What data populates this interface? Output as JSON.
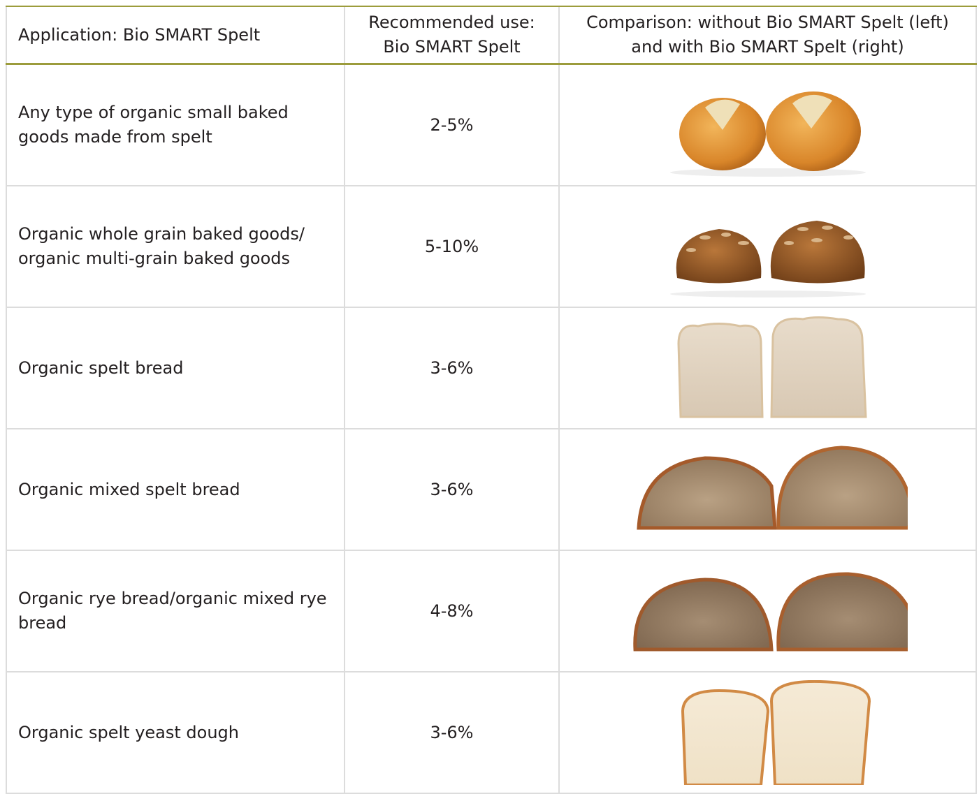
{
  "table": {
    "header": [
      [
        "Application: Bio SMART Spelt"
      ],
      [
        "Recommended use:",
        "Bio SMART Spelt"
      ],
      [
        "Comparison: without Bio SMART Spelt (left)",
        "and with Bio SMART Spelt (right)"
      ]
    ],
    "rows": [
      {
        "application": [
          "Any type of organic small baked",
          "goods made from spelt"
        ],
        "use": "2-5%"
      },
      {
        "application": [
          "Organic whole grain baked goods/",
          "organic multi-grain baked goods"
        ],
        "use": "5-10%"
      },
      {
        "application": [
          "Organic spelt bread"
        ],
        "use": "3-6%"
      },
      {
        "application": [
          "Organic mixed spelt bread"
        ],
        "use": "3-6%"
      },
      {
        "application": [
          "Organic rye bread/organic mixed rye",
          "bread"
        ],
        "use": "4-8%"
      },
      {
        "application": [
          "Organic spelt yeast dough"
        ],
        "use": "3-6%"
      }
    ]
  }
}
